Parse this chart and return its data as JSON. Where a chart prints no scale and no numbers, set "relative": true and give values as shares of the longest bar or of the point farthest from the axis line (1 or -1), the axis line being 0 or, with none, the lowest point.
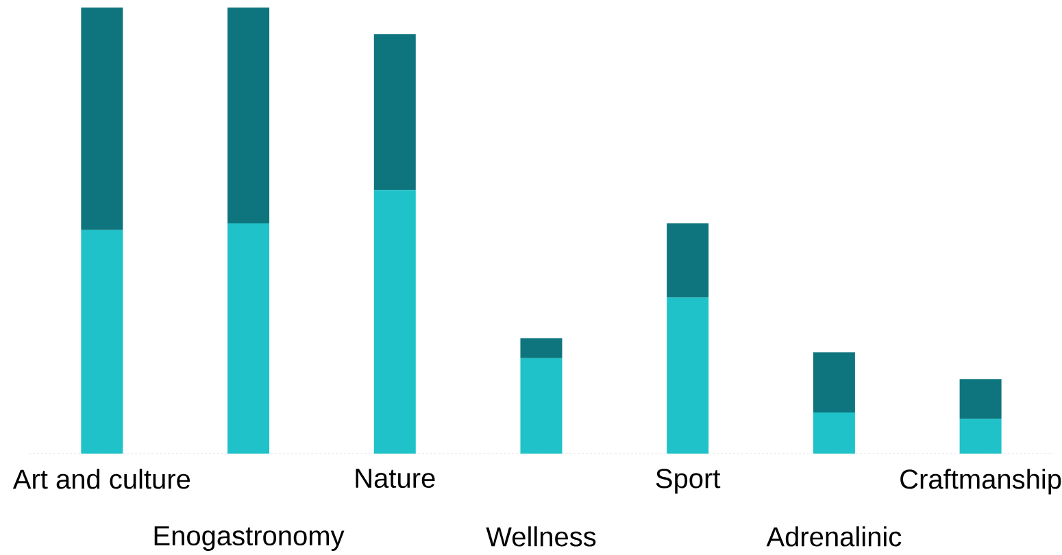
{
  "chart_data": {
    "type": "bar",
    "stacked": true,
    "relative": true,
    "categories": [
      "Art and culture",
      "Enogastronomy",
      "Nature",
      "Wellness",
      "Sport",
      "Adrenalinic",
      "Craftmanship"
    ],
    "series": [
      {
        "color": "#1fc2c8",
        "values": [
          0.501,
          0.516,
          0.591,
          0.214,
          0.35,
          0.092,
          0.078
        ]
      },
      {
        "color": "#0e757e",
        "values": [
          0.499,
          0.484,
          0.349,
          0.045,
          0.166,
          0.135,
          0.089
        ]
      }
    ]
  }
}
